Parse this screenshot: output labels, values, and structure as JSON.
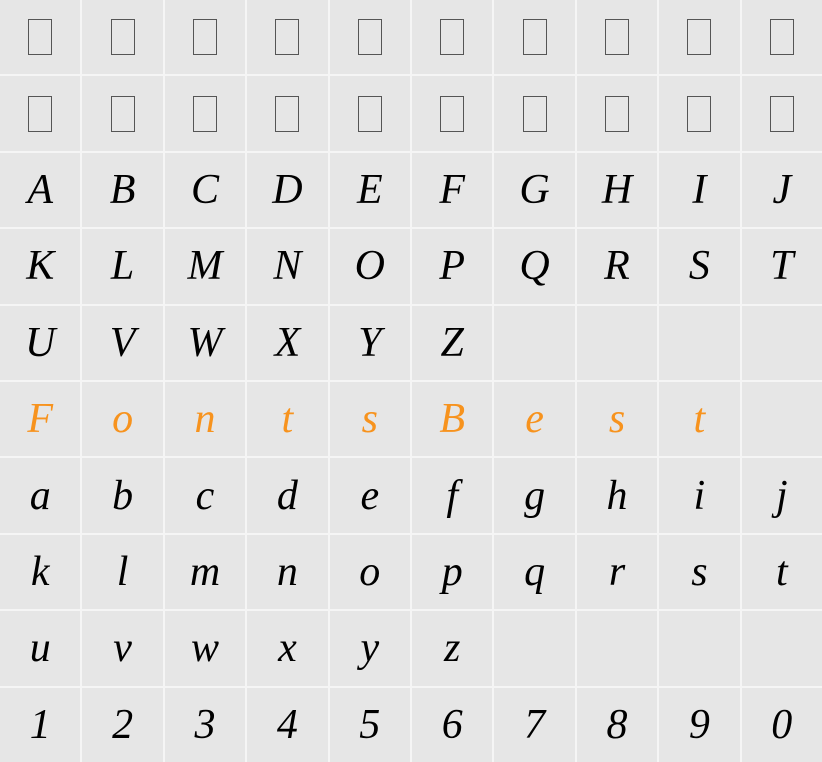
{
  "highlight_color": "#f7931e",
  "text_color": "#000000",
  "background_color": "#e6e6e6",
  "gap_color": "#f5f5f5",
  "font_family": "Times New Roman, serif",
  "font_style": "italic",
  "cell_font_size": 42,
  "columns": 10,
  "rows": 10,
  "rows_data": [
    {
      "type": "placeholder",
      "count": 10
    },
    {
      "type": "placeholder",
      "count": 10
    },
    {
      "type": "chars",
      "chars": [
        "A",
        "B",
        "C",
        "D",
        "E",
        "F",
        "G",
        "H",
        "I",
        "J"
      ],
      "highlight": false
    },
    {
      "type": "chars",
      "chars": [
        "K",
        "L",
        "M",
        "N",
        "O",
        "P",
        "Q",
        "R",
        "S",
        "T"
      ],
      "highlight": false
    },
    {
      "type": "chars",
      "chars": [
        "U",
        "V",
        "W",
        "X",
        "Y",
        "Z",
        "",
        "",
        "",
        ""
      ],
      "highlight": false
    },
    {
      "type": "chars",
      "chars": [
        "F",
        "o",
        "n",
        "t",
        "s",
        "B",
        "e",
        "s",
        "t",
        ""
      ],
      "highlight": true
    },
    {
      "type": "chars",
      "chars": [
        "a",
        "b",
        "c",
        "d",
        "e",
        "f",
        "g",
        "h",
        "i",
        "j"
      ],
      "highlight": false
    },
    {
      "type": "chars",
      "chars": [
        "k",
        "l",
        "m",
        "n",
        "o",
        "p",
        "q",
        "r",
        "s",
        "t"
      ],
      "highlight": false
    },
    {
      "type": "chars",
      "chars": [
        "u",
        "v",
        "w",
        "x",
        "y",
        "z",
        "",
        "",
        "",
        ""
      ],
      "highlight": false
    },
    {
      "type": "chars",
      "chars": [
        "1",
        "2",
        "3",
        "4",
        "5",
        "6",
        "7",
        "8",
        "9",
        "0"
      ],
      "highlight": false
    }
  ]
}
